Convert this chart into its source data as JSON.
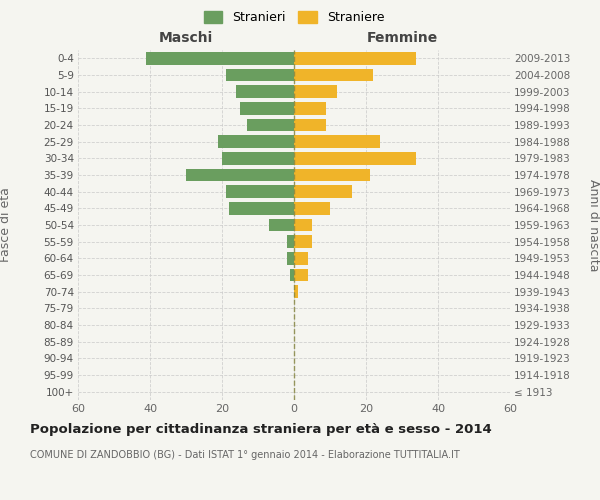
{
  "age_groups": [
    "100+",
    "95-99",
    "90-94",
    "85-89",
    "80-84",
    "75-79",
    "70-74",
    "65-69",
    "60-64",
    "55-59",
    "50-54",
    "45-49",
    "40-44",
    "35-39",
    "30-34",
    "25-29",
    "20-24",
    "15-19",
    "10-14",
    "5-9",
    "0-4"
  ],
  "birth_years": [
    "≤ 1913",
    "1914-1918",
    "1919-1923",
    "1924-1928",
    "1929-1933",
    "1934-1938",
    "1939-1943",
    "1944-1948",
    "1949-1953",
    "1954-1958",
    "1959-1963",
    "1964-1968",
    "1969-1973",
    "1974-1978",
    "1979-1983",
    "1984-1988",
    "1989-1993",
    "1994-1998",
    "1999-2003",
    "2004-2008",
    "2009-2013"
  ],
  "maschi": [
    0,
    0,
    0,
    0,
    0,
    0,
    0,
    1,
    2,
    2,
    7,
    18,
    19,
    30,
    20,
    21,
    13,
    15,
    16,
    19,
    41
  ],
  "femmine": [
    0,
    0,
    0,
    0,
    0,
    0,
    1,
    4,
    4,
    5,
    5,
    10,
    16,
    21,
    34,
    24,
    9,
    9,
    12,
    22,
    34
  ],
  "maschi_color": "#6a9e5f",
  "femmine_color": "#f0b429",
  "title": "Popolazione per cittadinanza straniera per età e sesso - 2014",
  "subtitle": "COMUNE DI ZANDOBBIO (BG) - Dati ISTAT 1° gennaio 2014 - Elaborazione TUTTITALIA.IT",
  "ylabel_left": "Fasce di età",
  "ylabel_right": "Anni di nascita",
  "xlabel_left": "Maschi",
  "xlabel_right": "Femmine",
  "legend_maschi": "Stranieri",
  "legend_femmine": "Straniere",
  "xlim": 60,
  "background_color": "#f5f5f0",
  "grid_color": "#cccccc"
}
